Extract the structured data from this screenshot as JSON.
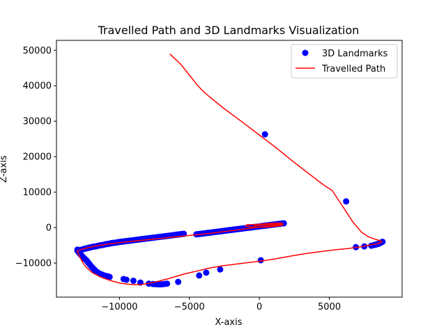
{
  "chart_data": {
    "type": "scatter",
    "title": "Travelled Path and 3D Landmarks Visualization",
    "xlabel": "X-axis",
    "ylabel": "Z-axis",
    "xlim": [
      -14500,
      10200
    ],
    "ylim": [
      -19600,
      52800
    ],
    "xticks": [
      -10000,
      -5000,
      0,
      5000
    ],
    "xtick_labels": [
      "−10000",
      "−5000",
      "0",
      "5000"
    ],
    "yticks": [
      -10000,
      0,
      10000,
      20000,
      30000,
      40000,
      50000
    ],
    "ytick_labels": [
      "−10000",
      "0",
      "10000",
      "20000",
      "30000",
      "40000",
      "50000"
    ],
    "legend_position": "top-right",
    "colors": {
      "landmarks": "#0000ff",
      "path": "#ff0000"
    },
    "series": [
      {
        "name": "3D Landmarks",
        "kind": "scatter",
        "x": [
          -13000,
          -12900,
          -12800,
          -12700,
          -12600,
          -12500,
          -12400,
          -12300,
          -12200,
          -12100,
          -12000,
          -11900,
          -11800,
          -11700,
          -11600,
          -11500,
          -11400,
          -11300,
          -11200,
          -11100,
          -11000,
          -10900,
          -10800,
          -10700,
          -10600,
          -10500,
          -10400,
          -10300,
          -10200,
          -10100,
          -10000,
          -9900,
          -9800,
          -9700,
          -9600,
          -9500,
          -9400,
          -9300,
          -9200,
          -9100,
          -9000,
          -8900,
          -8800,
          -8700,
          -8600,
          -8500,
          -8400,
          -8300,
          -8200,
          -8100,
          -8000,
          -7900,
          -7800,
          -7700,
          -7600,
          -7500,
          -7400,
          -7300,
          -7200,
          -7100,
          -7000,
          -6900,
          -6800,
          -6700,
          -6600,
          -6500,
          -6400,
          -6300,
          -6200,
          -6100,
          -6000,
          -5900,
          -5800,
          -5700,
          -5600,
          -5500,
          -5400,
          -4500,
          -4400,
          -4300,
          -4200,
          -4100,
          -4000,
          -3900,
          -3800,
          -3700,
          -3600,
          -3500,
          -3400,
          -3300,
          -3200,
          -3100,
          -3000,
          -2900,
          -2800,
          -2700,
          -2600,
          -2500,
          -2400,
          -2300,
          -2200,
          -2100,
          -2000,
          -1900,
          -1800,
          -1700,
          -1600,
          -1500,
          -1400,
          -1300,
          -1200,
          -1100,
          -1000,
          -900,
          -800,
          -700,
          -600,
          -500,
          -400,
          -300,
          -200,
          -100,
          0,
          100,
          200,
          300,
          400,
          500,
          600,
          700,
          800,
          900,
          1000,
          1100,
          1200,
          1300,
          1400,
          1500,
          1600,
          1700,
          1750,
          -13000,
          -12900,
          -12800,
          -12700,
          -12600,
          -12500,
          -12400,
          -12300,
          -12200,
          -12100,
          -12000,
          -11900,
          -11800,
          -11700,
          -11600,
          -11500,
          -11400,
          -11300,
          -11200,
          -11100,
          -11000,
          -10900,
          -10800,
          -10700,
          -9700,
          -9500,
          -9000,
          -8500,
          -7900,
          -7600,
          -7400,
          -7200,
          -7000,
          -6800,
          -6600,
          -5800,
          -4300,
          -3800,
          -2800,
          100,
          400,
          6200,
          6900,
          7500,
          8000,
          8200,
          8300,
          8400,
          8500,
          8600,
          8700,
          8800
        ],
        "y": [
          -6500,
          -6400,
          -6300,
          -6200,
          -6100,
          -6000,
          -5900,
          -5800,
          -5700,
          -5600,
          -5500,
          -5400,
          -5350,
          -5300,
          -5200,
          -5100,
          -5000,
          -4950,
          -4900,
          -4800,
          -4700,
          -4650,
          -4600,
          -4500,
          -4400,
          -4350,
          -4300,
          -4250,
          -4200,
          -4100,
          -4050,
          -4000,
          -3950,
          -3900,
          -3850,
          -3800,
          -3750,
          -3700,
          -3650,
          -3600,
          -3550,
          -3500,
          -3450,
          -3400,
          -3350,
          -3300,
          -3250,
          -3200,
          -3150,
          -3100,
          -3050,
          -3000,
          -2950,
          -2900,
          -2850,
          -2800,
          -2750,
          -2700,
          -2650,
          -2600,
          -2550,
          -2500,
          -2450,
          -2400,
          -2350,
          -2300,
          -2250,
          -2200,
          -2150,
          -2100,
          -2050,
          -2000,
          -1950,
          -1900,
          -1850,
          -1800,
          -1750,
          -1900,
          -1850,
          -1800,
          -1750,
          -1700,
          -1650,
          -1600,
          -1550,
          -1500,
          -1450,
          -1400,
          -1350,
          -1300,
          -1250,
          -1200,
          -1150,
          -1100,
          -1050,
          -1000,
          -950,
          -900,
          -850,
          -800,
          -750,
          -700,
          -650,
          -600,
          -550,
          -500,
          -450,
          -400,
          -350,
          -300,
          -250,
          -200,
          -150,
          -100,
          -50,
          0,
          50,
          100,
          150,
          200,
          250,
          300,
          350,
          400,
          450,
          500,
          550,
          600,
          650,
          700,
          750,
          800,
          850,
          900,
          950,
          1000,
          1050,
          1100,
          1150,
          1200,
          1200,
          -6200,
          -7000,
          -7500,
          -7900,
          -8300,
          -8700,
          -9100,
          -9500,
          -10000,
          -10500,
          -11000,
          -11400,
          -11800,
          -12200,
          -12500,
          -12800,
          -13000,
          -13200,
          -13300,
          -13500,
          -13600,
          -13700,
          -13800,
          -13900,
          -14500,
          -14700,
          -15000,
          -15500,
          -15800,
          -15900,
          -15950,
          -16000,
          -16000,
          -15900,
          -15800,
          -15300,
          -13500,
          -12700,
          -11800,
          -9200,
          26300,
          7400,
          -5500,
          -5300,
          -5100,
          -4900,
          -4800,
          -4700,
          -4600,
          -4400,
          -4200,
          -4000
        ]
      },
      {
        "name": "Travelled Path",
        "kind": "line",
        "x": [
          -6400,
          -5600,
          -4900,
          -4500,
          -4100,
          -3600,
          -2500,
          -1200,
          100,
          1200,
          2300,
          3500,
          4600,
          5200,
          5700,
          6200,
          6700,
          7300,
          7800,
          8300,
          8700,
          8750,
          8400,
          7900,
          7400,
          6900,
          6300,
          5500,
          4500,
          3200,
          2000,
          1000,
          200,
          -700,
          -1700,
          -2700,
          -3700,
          -4500,
          -5300,
          -5900,
          -6400,
          -6900,
          -7400,
          -7900,
          -8400,
          -8900,
          -9400,
          -9900,
          -10400,
          -10900,
          -11400,
          -11900,
          -12300,
          -12600,
          -12800,
          -12950,
          -13000,
          -12600,
          -11700,
          -10700,
          -9700,
          -8700,
          -7700,
          -6700,
          -5700,
          -4700,
          -3700,
          -2700,
          -1700,
          -700,
          300,
          1200,
          1700,
          1650,
          1200,
          500,
          -200,
          -900,
          -1000,
          -600,
          0,
          600,
          1200,
          1600,
          1700,
          1500,
          900,
          200,
          -400
        ],
        "y": [
          49000,
          46000,
          42500,
          40500,
          38800,
          37000,
          33500,
          29700,
          25800,
          22500,
          19000,
          15300,
          12000,
          10500,
          7500,
          4500,
          1500,
          -1300,
          -2600,
          -3300,
          -3800,
          -4100,
          -4600,
          -4900,
          -5300,
          -5600,
          -5900,
          -6200,
          -6700,
          -7400,
          -8200,
          -8900,
          -9400,
          -9800,
          -10300,
          -10800,
          -11500,
          -12300,
          -13000,
          -13700,
          -14300,
          -14800,
          -15300,
          -15700,
          -16000,
          -16100,
          -15950,
          -15700,
          -15200,
          -14600,
          -13800,
          -12800,
          -11500,
          -10000,
          -8500,
          -7200,
          -6600,
          -6000,
          -5200,
          -4600,
          -4100,
          -3700,
          -3300,
          -2900,
          -2500,
          -2100,
          -1700,
          -1200,
          -700,
          -200,
          300,
          700,
          900,
          1300,
          1300,
          1100,
          900,
          800,
          400,
          200,
          100,
          200,
          400,
          600,
          800,
          1000,
          900,
          700,
          500
        ]
      }
    ]
  }
}
